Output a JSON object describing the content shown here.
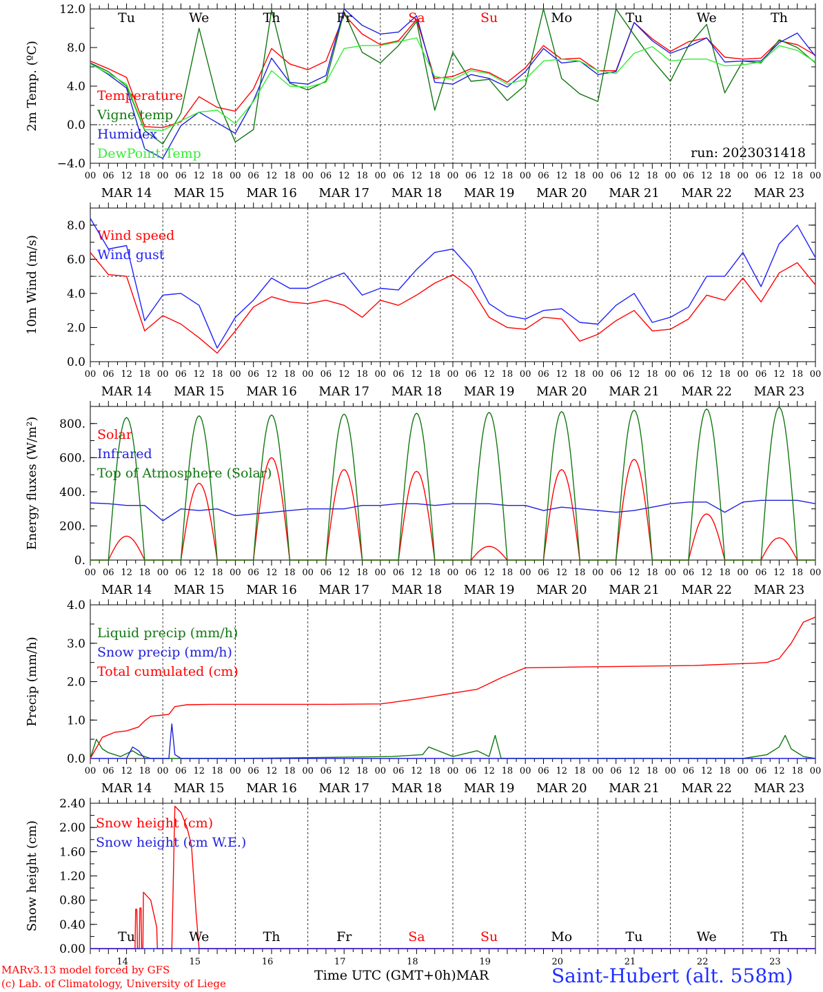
{
  "chart_data": [
    {
      "type": "line",
      "ylabel": "2m Temp. (ºC)",
      "ylim": [
        -4,
        12
      ],
      "yticks": [
        "−4.0",
        "0.0",
        "4.0",
        "8.0",
        "12.0"
      ],
      "ytick_values": [
        -4,
        0,
        4,
        8,
        12
      ],
      "ref_line": 0,
      "weekday_labels": [
        "Tu",
        "We",
        "Th",
        "Fr",
        "Sa",
        "Su",
        "Mo",
        "Tu",
        "We",
        "Th"
      ],
      "weekday_colors": [
        "#000000",
        "#000000",
        "#000000",
        "#000000",
        "#ff0000",
        "#ff0000",
        "#000000",
        "#000000",
        "#000000",
        "#000000"
      ],
      "annotation": "run: 2023031418",
      "series": [
        {
          "name": "Temperature",
          "color": "#ff0000",
          "x": [
            0,
            6,
            12,
            18,
            24,
            30,
            36,
            42,
            48,
            54,
            60,
            66,
            72,
            78,
            84,
            90,
            96,
            102,
            108,
            114,
            120,
            126,
            132,
            138,
            144,
            150,
            156,
            162,
            168,
            174,
            180,
            186,
            192,
            198,
            204,
            210,
            216,
            222,
            228,
            234,
            240
          ],
          "y": [
            6.6,
            5.8,
            4.9,
            -0.2,
            -0.3,
            0.3,
            2.9,
            1.8,
            1.4,
            3.7,
            7.9,
            6.3,
            5.7,
            6.6,
            11.4,
            9.4,
            8.3,
            8.7,
            10.9,
            4.8,
            5.0,
            5.8,
            5.4,
            4.4,
            5.9,
            8.2,
            6.8,
            6.9,
            5.6,
            5.6,
            10.6,
            8.9,
            7.6,
            8.6,
            9.0,
            7.0,
            6.8,
            6.9,
            8.7,
            8.3,
            7.2
          ]
        },
        {
          "name": "Vigne temp",
          "color": "#117711",
          "x": [
            0,
            6,
            12,
            18,
            24,
            30,
            36,
            42,
            48,
            54,
            60,
            66,
            72,
            78,
            84,
            90,
            96,
            102,
            108,
            114,
            120,
            126,
            132,
            138,
            144,
            150,
            156,
            162,
            168,
            174,
            180,
            186,
            192,
            198,
            204,
            210,
            216,
            222,
            228,
            234,
            240
          ],
          "y": [
            6.4,
            5.5,
            4.0,
            -0.6,
            -2.0,
            1.2,
            10.0,
            2.6,
            -1.8,
            -0.5,
            11.9,
            4.3,
            3.6,
            4.5,
            11.7,
            7.5,
            6.4,
            8.2,
            10.7,
            1.5,
            7.5,
            4.5,
            4.7,
            2.5,
            4.1,
            12.0,
            4.8,
            3.2,
            2.4,
            12.0,
            9.3,
            6.7,
            4.5,
            8.2,
            10.4,
            3.3,
            6.6,
            6.4,
            8.8,
            8.0,
            6.4
          ]
        },
        {
          "name": "Humidex",
          "color": "#1f1fdd",
          "x": [
            0,
            6,
            12,
            18,
            24,
            30,
            36,
            42,
            48,
            54,
            60,
            66,
            72,
            78,
            84,
            90,
            96,
            102,
            108,
            114,
            120,
            126,
            132,
            138,
            144,
            150,
            156,
            162,
            168,
            174,
            180,
            186,
            192,
            198,
            204,
            210,
            216,
            222,
            228,
            234,
            240
          ],
          "y": [
            6.4,
            5.2,
            3.8,
            -2.5,
            -3.5,
            -0.1,
            1.3,
            0.2,
            -0.9,
            2.5,
            6.9,
            4.4,
            4.2,
            5.1,
            12.0,
            10.3,
            9.4,
            9.6,
            11.3,
            4.4,
            4.2,
            5.2,
            4.8,
            3.9,
            5.5,
            7.9,
            6.4,
            6.6,
            5.2,
            5.5,
            10.6,
            8.7,
            7.4,
            8.1,
            9.0,
            6.5,
            6.6,
            6.6,
            8.5,
            9.5,
            7.1
          ]
        },
        {
          "name": "DewPoint Temp",
          "color": "#33ee33",
          "x": [
            0,
            6,
            12,
            18,
            24,
            30,
            36,
            42,
            48,
            54,
            60,
            66,
            72,
            78,
            84,
            90,
            96,
            102,
            108,
            114,
            120,
            126,
            132,
            138,
            144,
            150,
            156,
            162,
            168,
            174,
            180,
            186,
            192,
            198,
            204,
            210,
            216,
            222,
            228,
            234,
            240
          ],
          "y": [
            6.3,
            5.3,
            4.2,
            -0.5,
            -0.6,
            0.4,
            1.3,
            1.5,
            0.1,
            2.4,
            5.6,
            4.0,
            3.9,
            4.4,
            7.9,
            8.2,
            8.2,
            8.6,
            9.0,
            5.0,
            4.7,
            5.6,
            5.3,
            4.2,
            4.7,
            6.6,
            6.8,
            6.6,
            5.6,
            5.3,
            7.4,
            8.1,
            6.6,
            6.8,
            6.8,
            6.1,
            6.2,
            6.5,
            8.2,
            7.7,
            6.5
          ]
        }
      ]
    },
    {
      "type": "line",
      "ylabel": "10m Wind (m/s)",
      "ylim": [
        0,
        9
      ],
      "yticks": [
        "0.0",
        "2.0",
        "4.0",
        "6.0",
        "8.0"
      ],
      "ytick_values": [
        0,
        2,
        4,
        6,
        8
      ],
      "ref_line": 5,
      "series": [
        {
          "name": "Wind speed",
          "color": "#ff0000",
          "x": [
            0,
            6,
            12,
            18,
            24,
            30,
            36,
            42,
            48,
            54,
            60,
            66,
            72,
            78,
            84,
            90,
            96,
            102,
            108,
            114,
            120,
            126,
            132,
            138,
            144,
            150,
            156,
            162,
            168,
            174,
            180,
            186,
            192,
            198,
            204,
            210,
            216,
            222,
            228,
            234,
            240
          ],
          "y": [
            6.4,
            5.1,
            5.0,
            1.8,
            2.7,
            2.2,
            1.4,
            0.5,
            1.8,
            3.2,
            3.8,
            3.5,
            3.4,
            3.6,
            3.3,
            2.6,
            3.6,
            3.3,
            3.9,
            4.6,
            5.1,
            4.3,
            2.6,
            2.0,
            1.9,
            2.6,
            2.5,
            1.2,
            1.6,
            2.4,
            3.0,
            1.8,
            1.9,
            2.5,
            3.9,
            3.6,
            4.9,
            3.5,
            5.2,
            5.8,
            4.5
          ]
        },
        {
          "name": "Wind gust",
          "color": "#1f1fff",
          "x": [
            0,
            6,
            12,
            18,
            24,
            30,
            36,
            42,
            48,
            54,
            60,
            66,
            72,
            78,
            84,
            90,
            96,
            102,
            108,
            114,
            120,
            126,
            132,
            138,
            144,
            150,
            156,
            162,
            168,
            174,
            180,
            186,
            192,
            198,
            204,
            210,
            216,
            222,
            228,
            234,
            240
          ],
          "y": [
            8.4,
            6.6,
            6.8,
            2.4,
            3.9,
            4.0,
            3.3,
            0.8,
            2.6,
            3.6,
            4.9,
            4.3,
            4.3,
            4.8,
            5.2,
            3.9,
            4.3,
            4.2,
            5.4,
            6.4,
            6.6,
            5.4,
            3.4,
            2.7,
            2.5,
            3.0,
            3.1,
            2.3,
            2.2,
            3.3,
            4.0,
            2.3,
            2.6,
            3.2,
            5.0,
            5.0,
            6.4,
            4.4,
            6.9,
            8.0,
            6.1
          ]
        }
      ]
    },
    {
      "type": "line",
      "ylabel": "Energy fluxes (W/m²)",
      "ylim": [
        0,
        900
      ],
      "yticks": [
        "0.",
        "200.",
        "400.",
        "600.",
        "800."
      ],
      "ytick_values": [
        0,
        200,
        400,
        600,
        800
      ],
      "series": [
        {
          "name": "Solar",
          "color": "#ff0000",
          "daily_peak": [
            140,
            450,
            600,
            530,
            520,
            80,
            530,
            590,
            270,
            130
          ]
        },
        {
          "name": "Infrared",
          "color": "#1f1fdd",
          "x": [
            0,
            6,
            12,
            18,
            24,
            30,
            36,
            42,
            48,
            54,
            60,
            66,
            72,
            78,
            84,
            90,
            96,
            102,
            108,
            114,
            120,
            126,
            132,
            138,
            144,
            150,
            156,
            162,
            168,
            174,
            180,
            186,
            192,
            198,
            204,
            210,
            216,
            222,
            228,
            234,
            240
          ],
          "y": [
            335,
            330,
            320,
            320,
            230,
            300,
            290,
            300,
            260,
            270,
            280,
            290,
            300,
            300,
            300,
            320,
            320,
            330,
            330,
            320,
            330,
            330,
            330,
            320,
            320,
            290,
            310,
            300,
            290,
            280,
            290,
            310,
            330,
            340,
            340,
            280,
            340,
            350,
            350,
            350,
            330
          ]
        },
        {
          "name": "Top of Atmosphere (Solar)",
          "color": "#117711",
          "daily_peak": [
            835,
            845,
            850,
            855,
            860,
            865,
            870,
            878,
            885,
            895
          ]
        }
      ]
    },
    {
      "type": "line",
      "ylabel": "Precip (mm/h)",
      "ylim": [
        0,
        4
      ],
      "yticks": [
        "0.0",
        "1.0",
        "2.0",
        "3.0",
        "4.0"
      ],
      "ytick_values": [
        0,
        1,
        2,
        3,
        4
      ],
      "series": [
        {
          "name": "Liquid precip (mm/h)",
          "color": "#117711",
          "x": [
            0,
            2,
            4,
            6,
            10,
            14,
            16,
            18,
            20,
            24,
            48,
            100,
            110,
            112,
            120,
            128,
            132,
            134,
            136,
            168,
            216,
            224,
            228,
            230,
            232,
            236,
            240
          ],
          "y": [
            0,
            0.5,
            0.25,
            0.15,
            0.05,
            0.2,
            0.1,
            0.05,
            0,
            0,
            0,
            0.05,
            0.1,
            0.3,
            0.05,
            0.2,
            0.05,
            0.6,
            0,
            0,
            0,
            0.1,
            0.3,
            0.6,
            0.25,
            0.05,
            0
          ]
        },
        {
          "name": "Snow precip (mm/h)",
          "color": "#1f1fdd",
          "x": [
            0,
            12,
            14,
            16,
            18,
            26,
            27,
            28,
            30,
            240
          ],
          "y": [
            0,
            0,
            0.3,
            0.2,
            0,
            0,
            0.9,
            0.1,
            0,
            0
          ]
        },
        {
          "name": "Total cumulated (cm)",
          "color": "#ff0000",
          "x": [
            0,
            4,
            8,
            12,
            16,
            18,
            20,
            24,
            26,
            28,
            32,
            40,
            60,
            80,
            96,
            100,
            108,
            116,
            120,
            128,
            132,
            136,
            144,
            160,
            180,
            200,
            212,
            220,
            224,
            228,
            232,
            236,
            240
          ],
          "y": [
            0,
            0.55,
            0.68,
            0.72,
            0.82,
            0.98,
            1.1,
            1.13,
            1.15,
            1.35,
            1.4,
            1.41,
            1.41,
            1.41,
            1.42,
            1.46,
            1.55,
            1.65,
            1.7,
            1.8,
            1.95,
            2.1,
            2.36,
            2.38,
            2.4,
            2.42,
            2.46,
            2.48,
            2.5,
            2.6,
            3.0,
            3.55,
            3.68
          ]
        }
      ]
    },
    {
      "type": "line",
      "ylabel": "Snow height (cm)",
      "ylim": [
        0,
        2.4
      ],
      "yticks": [
        "0.00",
        "0.40",
        "0.80",
        "1.20",
        "1.60",
        "2.00",
        "2.40"
      ],
      "ytick_values": [
        0,
        0.4,
        0.8,
        1.2,
        1.6,
        2.0,
        2.4
      ],
      "xlabel": "Time UTC (GMT+0h)",
      "month": "MAR",
      "day_numbers": [
        "14",
        "15",
        "16",
        "17",
        "18",
        "19",
        "20",
        "21",
        "22",
        "23"
      ],
      "series": [
        {
          "name": "Snow height (cm)",
          "color": "#ff0000",
          "x": [
            0,
            14.8,
            15,
            15.4,
            15.6,
            16.2,
            16.4,
            16.8,
            17,
            17.4,
            17.6,
            20,
            22,
            22.2,
            27,
            28,
            30,
            32,
            33.5,
            35,
            36,
            240
          ],
          "y": [
            0,
            0,
            0.65,
            0.65,
            0,
            0,
            0.67,
            0.67,
            0,
            0,
            0.93,
            0.8,
            0.35,
            0,
            0,
            2.35,
            2.25,
            2.0,
            1.7,
            0.6,
            0,
            0
          ]
        },
        {
          "name": "Snow height (cm W.E.)",
          "color": "#1f1fdd",
          "x": [
            0,
            240
          ],
          "y": [
            0,
            0
          ]
        }
      ]
    }
  ],
  "x_axis": {
    "hour_labels": [
      "00",
      "06",
      "12",
      "18"
    ],
    "dates": [
      "MAR 14",
      "MAR 15",
      "MAR 16",
      "MAR 17",
      "MAR 18",
      "MAR 19",
      "MAR 20",
      "MAR 21",
      "MAR 22",
      "MAR 23"
    ]
  },
  "footer": {
    "left_line1": "MARv3.13 model forced by GFS",
    "left_line2": "(c) Lab. of Climatology, University of Liege",
    "center": "Time UTC (GMT+0h)",
    "month": "MAR",
    "station": "Saint-Hubert (alt. 558m)"
  }
}
